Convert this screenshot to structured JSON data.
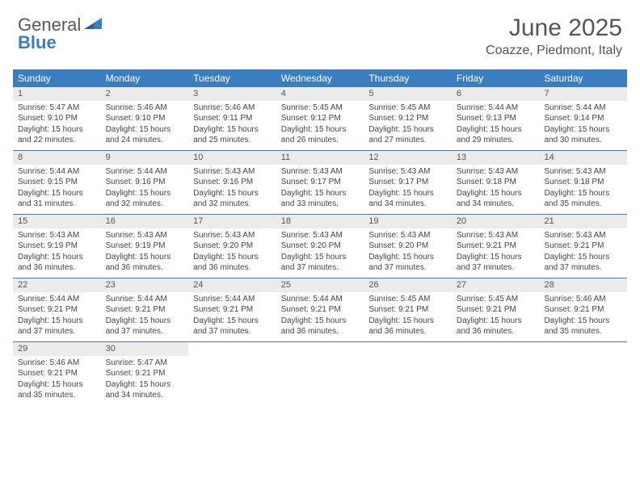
{
  "logo": {
    "text_dark": "General",
    "text_blue": "Blue"
  },
  "title": "June 2025",
  "location": "Coazze, Piedmont, Italy",
  "colors": {
    "header_bg": "#3a7ebf",
    "daynum_bg": "#ebebeb",
    "row_border": "#3a7ebf",
    "text_primary": "#444444",
    "logo_dark": "#575757",
    "logo_blue": "#3a7ebf"
  },
  "day_names": [
    "Sunday",
    "Monday",
    "Tuesday",
    "Wednesday",
    "Thursday",
    "Friday",
    "Saturday"
  ],
  "days": [
    {
      "n": 1,
      "sr": "5:47 AM",
      "ss": "9:10 PM",
      "dl": "15 hours and 22 minutes."
    },
    {
      "n": 2,
      "sr": "5:46 AM",
      "ss": "9:10 PM",
      "dl": "15 hours and 24 minutes."
    },
    {
      "n": 3,
      "sr": "5:46 AM",
      "ss": "9:11 PM",
      "dl": "15 hours and 25 minutes."
    },
    {
      "n": 4,
      "sr": "5:45 AM",
      "ss": "9:12 PM",
      "dl": "15 hours and 26 minutes."
    },
    {
      "n": 5,
      "sr": "5:45 AM",
      "ss": "9:12 PM",
      "dl": "15 hours and 27 minutes."
    },
    {
      "n": 6,
      "sr": "5:44 AM",
      "ss": "9:13 PM",
      "dl": "15 hours and 29 minutes."
    },
    {
      "n": 7,
      "sr": "5:44 AM",
      "ss": "9:14 PM",
      "dl": "15 hours and 30 minutes."
    },
    {
      "n": 8,
      "sr": "5:44 AM",
      "ss": "9:15 PM",
      "dl": "15 hours and 31 minutes."
    },
    {
      "n": 9,
      "sr": "5:44 AM",
      "ss": "9:16 PM",
      "dl": "15 hours and 32 minutes."
    },
    {
      "n": 10,
      "sr": "5:43 AM",
      "ss": "9:16 PM",
      "dl": "15 hours and 32 minutes."
    },
    {
      "n": 11,
      "sr": "5:43 AM",
      "ss": "9:17 PM",
      "dl": "15 hours and 33 minutes."
    },
    {
      "n": 12,
      "sr": "5:43 AM",
      "ss": "9:17 PM",
      "dl": "15 hours and 34 minutes."
    },
    {
      "n": 13,
      "sr": "5:43 AM",
      "ss": "9:18 PM",
      "dl": "15 hours and 34 minutes."
    },
    {
      "n": 14,
      "sr": "5:43 AM",
      "ss": "9:18 PM",
      "dl": "15 hours and 35 minutes."
    },
    {
      "n": 15,
      "sr": "5:43 AM",
      "ss": "9:19 PM",
      "dl": "15 hours and 36 minutes."
    },
    {
      "n": 16,
      "sr": "5:43 AM",
      "ss": "9:19 PM",
      "dl": "15 hours and 36 minutes."
    },
    {
      "n": 17,
      "sr": "5:43 AM",
      "ss": "9:20 PM",
      "dl": "15 hours and 36 minutes."
    },
    {
      "n": 18,
      "sr": "5:43 AM",
      "ss": "9:20 PM",
      "dl": "15 hours and 37 minutes."
    },
    {
      "n": 19,
      "sr": "5:43 AM",
      "ss": "9:20 PM",
      "dl": "15 hours and 37 minutes."
    },
    {
      "n": 20,
      "sr": "5:43 AM",
      "ss": "9:21 PM",
      "dl": "15 hours and 37 minutes."
    },
    {
      "n": 21,
      "sr": "5:43 AM",
      "ss": "9:21 PM",
      "dl": "15 hours and 37 minutes."
    },
    {
      "n": 22,
      "sr": "5:44 AM",
      "ss": "9:21 PM",
      "dl": "15 hours and 37 minutes."
    },
    {
      "n": 23,
      "sr": "5:44 AM",
      "ss": "9:21 PM",
      "dl": "15 hours and 37 minutes."
    },
    {
      "n": 24,
      "sr": "5:44 AM",
      "ss": "9:21 PM",
      "dl": "15 hours and 37 minutes."
    },
    {
      "n": 25,
      "sr": "5:44 AM",
      "ss": "9:21 PM",
      "dl": "15 hours and 36 minutes."
    },
    {
      "n": 26,
      "sr": "5:45 AM",
      "ss": "9:21 PM",
      "dl": "15 hours and 36 minutes."
    },
    {
      "n": 27,
      "sr": "5:45 AM",
      "ss": "9:21 PM",
      "dl": "15 hours and 36 minutes."
    },
    {
      "n": 28,
      "sr": "5:46 AM",
      "ss": "9:21 PM",
      "dl": "15 hours and 35 minutes."
    },
    {
      "n": 29,
      "sr": "5:46 AM",
      "ss": "9:21 PM",
      "dl": "15 hours and 35 minutes."
    },
    {
      "n": 30,
      "sr": "5:47 AM",
      "ss": "9:21 PM",
      "dl": "15 hours and 34 minutes."
    }
  ],
  "labels": {
    "sunrise": "Sunrise:",
    "sunset": "Sunset:",
    "daylight": "Daylight:"
  },
  "layout": {
    "start_offset": 0,
    "columns": 7
  }
}
